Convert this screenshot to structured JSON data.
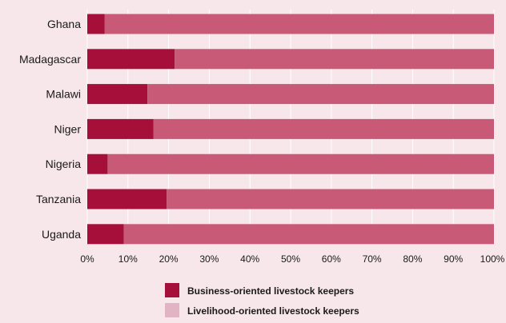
{
  "chart_data": {
    "type": "bar",
    "orientation": "horizontal",
    "stacked": true,
    "categories": [
      "Ghana",
      "Madagascar",
      "Malawi",
      "Niger",
      "Nigeria",
      "Tanzania",
      "Uganda"
    ],
    "series": [
      {
        "name": "Business-oriented livestock keepers",
        "color": "#a50f3a",
        "values": [
          4.3,
          21.5,
          14.8,
          16.3,
          5.0,
          19.5,
          9.0
        ]
      },
      {
        "name": "Livelihood-oriented livestock keepers",
        "color": "#c85a77",
        "values": [
          95.7,
          78.5,
          85.2,
          83.7,
          95.0,
          80.5,
          91.0
        ]
      }
    ],
    "xlim": [
      0,
      100
    ],
    "x_ticks": [
      "0%",
      "10%",
      "20%",
      "30%",
      "40%",
      "50%",
      "60%",
      "70%",
      "80%",
      "90%",
      "100%"
    ],
    "grid": true,
    "legend_position": "bottom",
    "legend_swatch_colors": [
      "#a50f3a",
      "#e2b4c3"
    ],
    "grid_color": "#ffffff",
    "background_color": "#f7e6ea"
  }
}
